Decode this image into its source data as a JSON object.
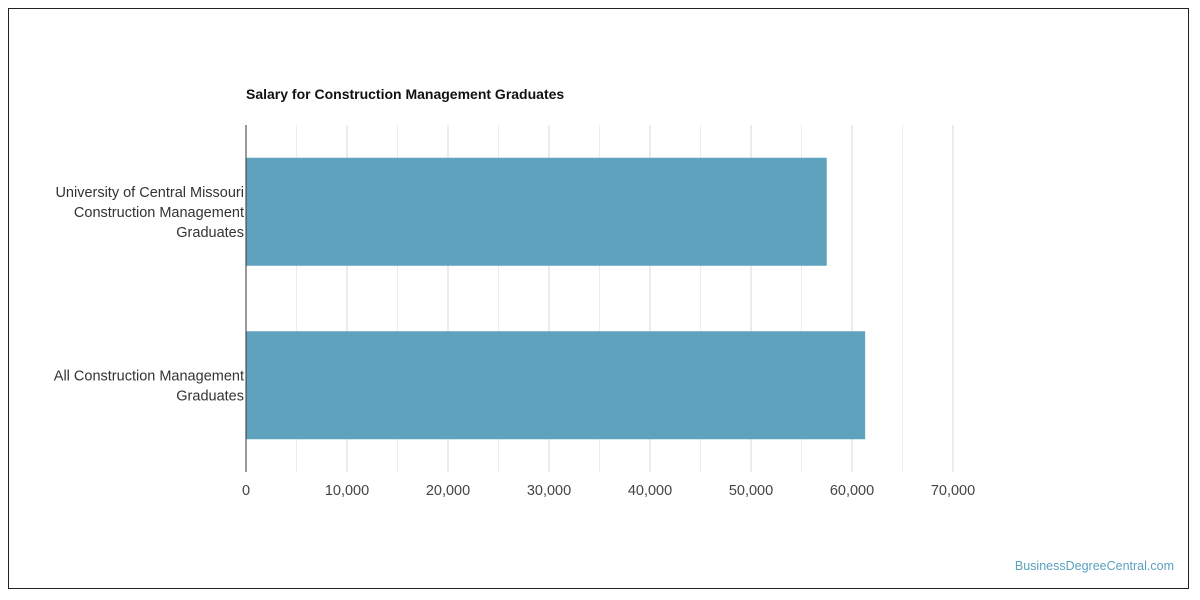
{
  "colors": {
    "bar": "#5fa2be",
    "grid_major": "#d9d9d9",
    "grid_minor": "#ececec",
    "axis": "#333333",
    "watermark": "#5ba1c0"
  },
  "watermark": "BusinessDegreeCentral.com",
  "chart_data": {
    "type": "bar",
    "orientation": "horizontal",
    "title": "Salary for Construction Management Graduates",
    "xlabel": "",
    "ylabel": "",
    "categories": [
      [
        "University of Central Missouri",
        "Construction Management",
        "Graduates"
      ],
      [
        "All Construction Management",
        "Graduates"
      ]
    ],
    "values": [
      57500,
      61300
    ],
    "xlim": [
      0,
      70000
    ],
    "ticks": [
      0,
      10000,
      20000,
      30000,
      40000,
      50000,
      60000,
      70000
    ],
    "tick_labels": [
      "0",
      "10,000",
      "20,000",
      "30,000",
      "40,000",
      "50,000",
      "60,000",
      "70,000"
    ],
    "grid": true,
    "legend": "none"
  }
}
